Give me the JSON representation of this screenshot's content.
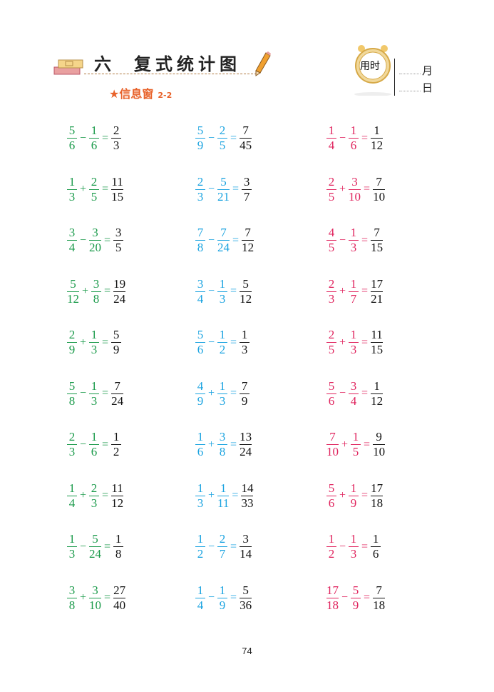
{
  "header": {
    "chapter_number": "六",
    "chapter_title": "复式统计图",
    "section": "信息窗",
    "section_code": "2-2",
    "clock_label": "用时",
    "month_label": "月",
    "day_label": "日"
  },
  "colors": {
    "col1": "#1a9a4a",
    "col2": "#1aa3e0",
    "col3": "#e0245e",
    "answer": "#111111",
    "accent": "#e8622a"
  },
  "columns": [
    [
      {
        "a": [
          "5",
          "6"
        ],
        "op": "−",
        "b": [
          "1",
          "6"
        ],
        "r": [
          "2",
          "3"
        ]
      },
      {
        "a": [
          "1",
          "3"
        ],
        "op": "+",
        "b": [
          "2",
          "5"
        ],
        "r": [
          "11",
          "15"
        ]
      },
      {
        "a": [
          "3",
          "4"
        ],
        "op": "−",
        "b": [
          "3",
          "20"
        ],
        "r": [
          "3",
          "5"
        ]
      },
      {
        "a": [
          "5",
          "12"
        ],
        "op": "+",
        "b": [
          "3",
          "8"
        ],
        "r": [
          "19",
          "24"
        ]
      },
      {
        "a": [
          "2",
          "9"
        ],
        "op": "+",
        "b": [
          "1",
          "3"
        ],
        "r": [
          "5",
          "9"
        ]
      },
      {
        "a": [
          "5",
          "8"
        ],
        "op": "−",
        "b": [
          "1",
          "3"
        ],
        "r": [
          "7",
          "24"
        ]
      },
      {
        "a": [
          "2",
          "3"
        ],
        "op": "−",
        "b": [
          "1",
          "6"
        ],
        "r": [
          "1",
          "2"
        ]
      },
      {
        "a": [
          "1",
          "4"
        ],
        "op": "+",
        "b": [
          "2",
          "3"
        ],
        "r": [
          "11",
          "12"
        ]
      },
      {
        "a": [
          "1",
          "3"
        ],
        "op": "−",
        "b": [
          "5",
          "24"
        ],
        "r": [
          "1",
          "8"
        ]
      },
      {
        "a": [
          "3",
          "8"
        ],
        "op": "+",
        "b": [
          "3",
          "10"
        ],
        "r": [
          "27",
          "40"
        ]
      }
    ],
    [
      {
        "a": [
          "5",
          "9"
        ],
        "op": "−",
        "b": [
          "2",
          "5"
        ],
        "r": [
          "7",
          "45"
        ]
      },
      {
        "a": [
          "2",
          "3"
        ],
        "op": "−",
        "b": [
          "5",
          "21"
        ],
        "r": [
          "3",
          "7"
        ]
      },
      {
        "a": [
          "7",
          "8"
        ],
        "op": "−",
        "b": [
          "7",
          "24"
        ],
        "r": [
          "7",
          "12"
        ]
      },
      {
        "a": [
          "3",
          "4"
        ],
        "op": "−",
        "b": [
          "1",
          "3"
        ],
        "r": [
          "5",
          "12"
        ]
      },
      {
        "a": [
          "5",
          "6"
        ],
        "op": "−",
        "b": [
          "1",
          "2"
        ],
        "r": [
          "1",
          "3"
        ]
      },
      {
        "a": [
          "4",
          "9"
        ],
        "op": "+",
        "b": [
          "1",
          "3"
        ],
        "r": [
          "7",
          "9"
        ]
      },
      {
        "a": [
          "1",
          "6"
        ],
        "op": "+",
        "b": [
          "3",
          "8"
        ],
        "r": [
          "13",
          "24"
        ]
      },
      {
        "a": [
          "1",
          "3"
        ],
        "op": "+",
        "b": [
          "1",
          "11"
        ],
        "r": [
          "14",
          "33"
        ]
      },
      {
        "a": [
          "1",
          "2"
        ],
        "op": "−",
        "b": [
          "2",
          "7"
        ],
        "r": [
          "3",
          "14"
        ]
      },
      {
        "a": [
          "1",
          "4"
        ],
        "op": "−",
        "b": [
          "1",
          "9"
        ],
        "r": [
          "5",
          "36"
        ]
      }
    ],
    [
      {
        "a": [
          "1",
          "4"
        ],
        "op": "−",
        "b": [
          "1",
          "6"
        ],
        "r": [
          "1",
          "12"
        ]
      },
      {
        "a": [
          "2",
          "5"
        ],
        "op": "+",
        "b": [
          "3",
          "10"
        ],
        "r": [
          "7",
          "10"
        ]
      },
      {
        "a": [
          "4",
          "5"
        ],
        "op": "−",
        "b": [
          "1",
          "3"
        ],
        "r": [
          "7",
          "15"
        ]
      },
      {
        "a": [
          "2",
          "3"
        ],
        "op": "+",
        "b": [
          "1",
          "7"
        ],
        "r": [
          "17",
          "21"
        ]
      },
      {
        "a": [
          "2",
          "5"
        ],
        "op": "+",
        "b": [
          "1",
          "3"
        ],
        "r": [
          "11",
          "15"
        ]
      },
      {
        "a": [
          "5",
          "6"
        ],
        "op": "−",
        "b": [
          "3",
          "4"
        ],
        "r": [
          "1",
          "12"
        ]
      },
      {
        "a": [
          "7",
          "10"
        ],
        "op": "+",
        "b": [
          "1",
          "5"
        ],
        "r": [
          "9",
          "10"
        ]
      },
      {
        "a": [
          "5",
          "6"
        ],
        "op": "+",
        "b": [
          "1",
          "9"
        ],
        "r": [
          "17",
          "18"
        ]
      },
      {
        "a": [
          "1",
          "2"
        ],
        "op": "−",
        "b": [
          "1",
          "3"
        ],
        "r": [
          "1",
          "6"
        ]
      },
      {
        "a": [
          "17",
          "18"
        ],
        "op": "−",
        "b": [
          "5",
          "9"
        ],
        "r": [
          "7",
          "18"
        ]
      }
    ]
  ],
  "page_number": "74"
}
